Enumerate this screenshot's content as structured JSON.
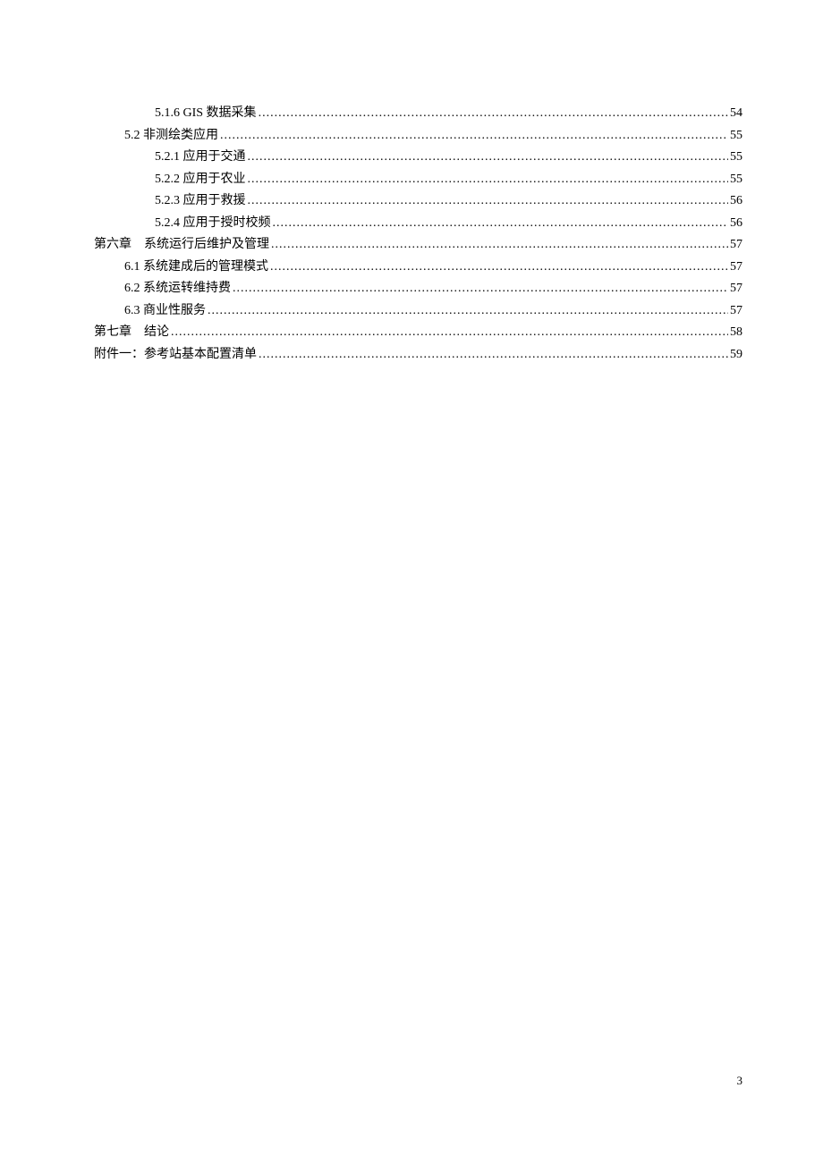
{
  "toc": {
    "entries": [
      {
        "level": 3,
        "text": "5.1.6 GIS 数据采集",
        "page": "54"
      },
      {
        "level": 2,
        "text": "5.2 非测绘类应用",
        "page": "55"
      },
      {
        "level": 3,
        "text": "5.2.1 应用于交通",
        "page": "55"
      },
      {
        "level": 3,
        "text": "5.2.2 应用于农业",
        "page": "55"
      },
      {
        "level": 3,
        "text": "5.2.3 应用于救援",
        "page": "56"
      },
      {
        "level": 3,
        "text": "5.2.4 应用于授时校频",
        "page": "56"
      },
      {
        "level": 1,
        "text": "第六章　系统运行后维护及管理",
        "page": "57"
      },
      {
        "level": 2,
        "text": "6.1 系统建成后的管理模式",
        "page": "57"
      },
      {
        "level": 2,
        "text": "6.2 系统运转维持费",
        "page": "57"
      },
      {
        "level": 2,
        "text": "6.3 商业性服务",
        "page": "57"
      },
      {
        "level": 1,
        "text": "第七章　结论",
        "page": "58"
      },
      {
        "level": 1,
        "text": "附件一：参考站基本配置清单",
        "page": "59"
      }
    ]
  },
  "page_number": "3"
}
